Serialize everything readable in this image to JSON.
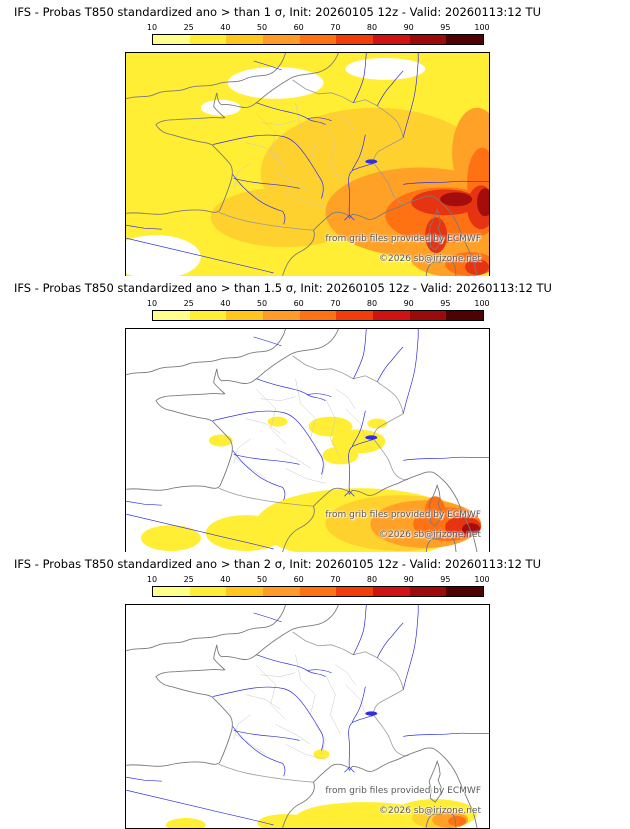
{
  "page": {
    "background": "#ffffff"
  },
  "colorbar": {
    "ticks": [
      "10",
      "25",
      "40",
      "50",
      "60",
      "70",
      "80",
      "90",
      "95",
      "100"
    ],
    "colors": [
      "#ffff8c",
      "#ffee33",
      "#ffc61e",
      "#ff9b26",
      "#ff7214",
      "#f23c0a",
      "#d01212",
      "#9c0a0a",
      "#4f0202"
    ]
  },
  "map_colors": {
    "yellow": "#ffee33",
    "gold": "#ffd12e",
    "orange": "#ffa126",
    "deep_orange": "#ff7214",
    "red": "#e63312",
    "dark_red": "#a50d0d"
  },
  "panels": [
    {
      "id": "sigma-1",
      "title": "IFS - Probas T850  standardized ano > than 1 σ, Init: 20260105 12z - Valid: 20260113:12 TU",
      "watermark": "from grib files provided by ECMWF",
      "credit": "©2026 sb@irizone.net"
    },
    {
      "id": "sigma-1.5",
      "title": "IFS - Probas T850  standardized ano > than 1.5 σ, Init: 20260105 12z - Valid: 20260113:12 TU",
      "watermark": "from grib files provided by ECMWF",
      "credit": "©2026 sb@irizone.net"
    },
    {
      "id": "sigma-2",
      "title": "IFS - Probas T850  standardized ano > than 2 σ, Init: 20260105 12z - Valid: 20260113:12 TU",
      "watermark": "from grib files provided by ECMWF",
      "credit": "©2026 sb@irizone.net"
    }
  ]
}
